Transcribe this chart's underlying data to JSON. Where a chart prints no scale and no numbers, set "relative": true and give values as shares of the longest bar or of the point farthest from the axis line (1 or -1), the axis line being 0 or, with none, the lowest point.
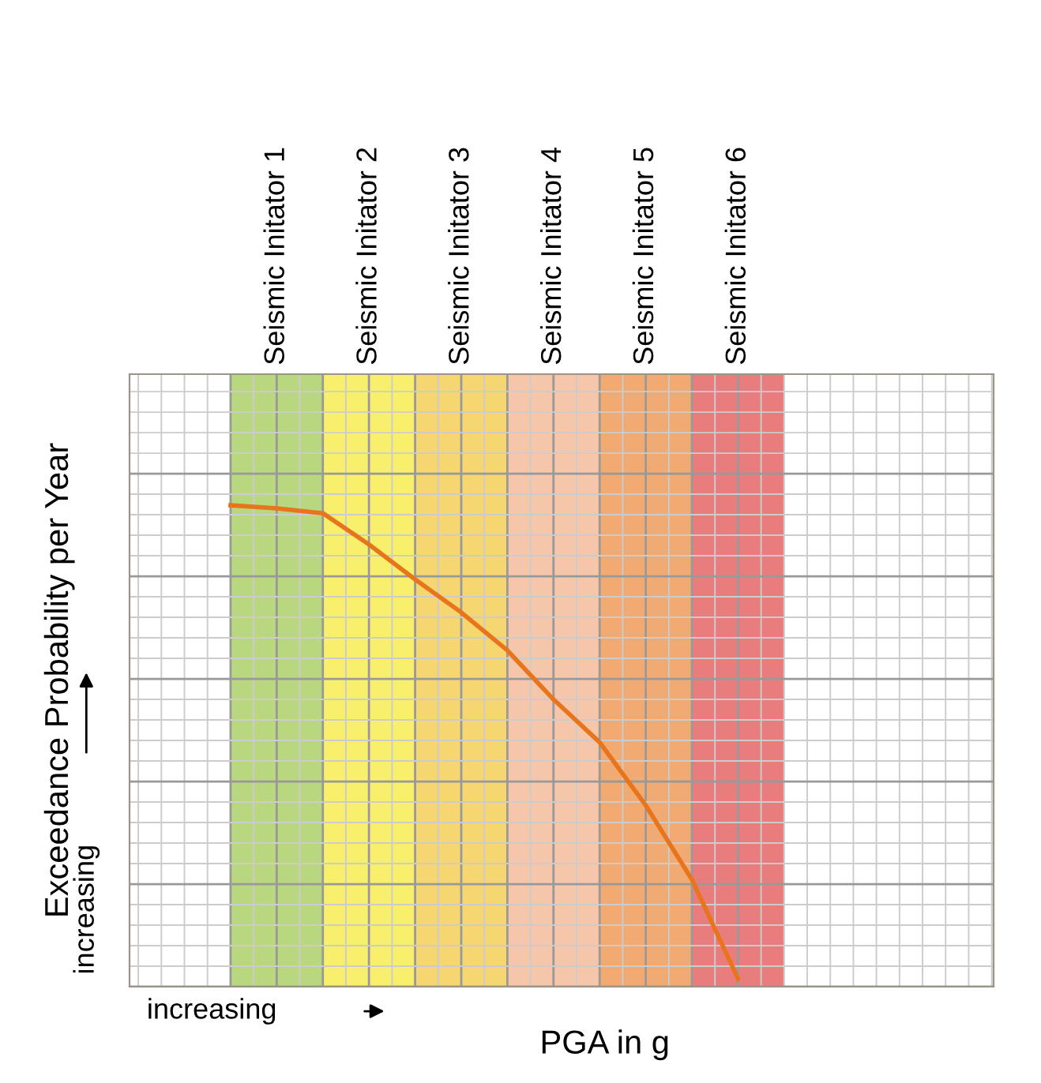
{
  "chart_data": {
    "type": "line",
    "relative": true,
    "xlabel": "PGA in g",
    "ylabel": "Exceedance Probability per Year",
    "annotations": [
      "increasing",
      "increasing"
    ],
    "categories": [
      null,
      "Seismic Initator 1",
      null,
      "Seismic Initator 2",
      null,
      "Seismic Initator 3",
      null,
      "Seismic Initator 4",
      null,
      "Seismic Initator 5",
      null,
      "Seismic Initator 6"
    ],
    "series": [
      {
        "type": "bar",
        "colors": [
          null,
          "#b8d77e",
          null,
          "#f8ef6c",
          null,
          "#f6d670",
          null,
          "#f5c6aa",
          null,
          "#f0aa72",
          null,
          "#e97c7c"
        ],
        "values": [
          null,
          1,
          null,
          1,
          null,
          1,
          null,
          1,
          null,
          1,
          null,
          1
        ]
      },
      {
        "color": "#e8741c",
        "values": [
          0.786,
          0.781,
          0.773,
          0.722,
          0.665,
          0.611,
          0.549,
          0.469,
          0.399,
          0.296,
          0.175,
          0.013
        ]
      }
    ],
    "grid": true,
    "tick_labels": "x",
    "marker": "none",
    "line_style": "solid"
  }
}
